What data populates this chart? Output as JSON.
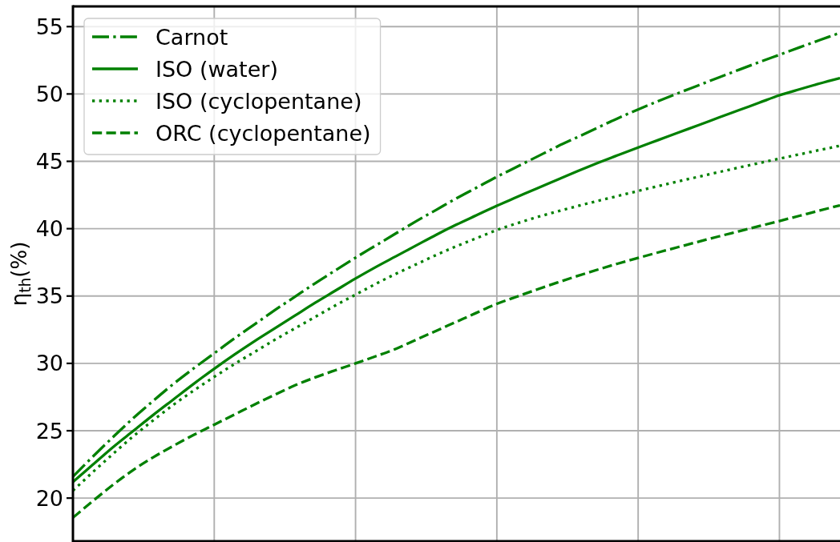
{
  "chart_data": {
    "type": "line",
    "ylabel": "η$_{th}$(%)",
    "categories": [
      null,
      null,
      null,
      null,
      null,
      null,
      null,
      null,
      null,
      null,
      null,
      null,
      null,
      null,
      null,
      null,
      null,
      null,
      null,
      null,
      null,
      null,
      null,
      null,
      null,
      null,
      null,
      null,
      null,
      null,
      null,
      null,
      null,
      null,
      null,
      null,
      null,
      null,
      null
    ],
    "ylim": [
      16.8,
      56.5
    ],
    "yticks": [
      20,
      25,
      30,
      35,
      40,
      45,
      50,
      55
    ],
    "grid": true,
    "legend": "top left",
    "series": [
      {
        "name": "Carnot",
        "color": "#008000",
        "line_style": "dashdot",
        "values": [
          21.6,
          23.1,
          24.55,
          25.95,
          27.25,
          28.5,
          29.65,
          30.75,
          31.85,
          32.9,
          33.95,
          34.95,
          35.95,
          36.9,
          37.85,
          38.75,
          39.65,
          40.55,
          41.4,
          42.25,
          43.05,
          43.85,
          44.6,
          45.35,
          46.1,
          46.8,
          47.5,
          48.2,
          48.85,
          49.47,
          50.07,
          50.65,
          51.23,
          51.8,
          52.36,
          52.91,
          53.46,
          54.0,
          54.54
        ]
      },
      {
        "name": "ISO (water)",
        "color": "#008000",
        "line_style": "solid",
        "values": [
          21.2,
          22.5,
          23.8,
          25.0,
          26.2,
          27.35,
          28.5,
          29.6,
          30.65,
          31.65,
          32.6,
          33.55,
          34.5,
          35.4,
          36.3,
          37.15,
          37.95,
          38.75,
          39.55,
          40.3,
          41.0,
          41.7,
          42.35,
          43.0,
          43.63,
          44.27,
          44.88,
          45.46,
          46.03,
          46.58,
          47.14,
          47.69,
          48.25,
          48.8,
          49.35,
          49.9,
          50.35,
          50.78,
          51.18
        ]
      },
      {
        "name": "ISO (cyclopentane)",
        "color": "#008000",
        "line_style": "dotted",
        "values": [
          20.55,
          21.95,
          23.3,
          24.6,
          25.8,
          26.95,
          28.0,
          29.0,
          29.95,
          30.85,
          31.75,
          32.6,
          33.45,
          34.3,
          35.1,
          35.9,
          36.65,
          37.35,
          38.05,
          38.7,
          39.3,
          39.9,
          40.4,
          40.86,
          41.28,
          41.68,
          42.06,
          42.43,
          42.8,
          43.16,
          43.51,
          43.86,
          44.2,
          44.54,
          44.87,
          45.2,
          45.52,
          45.84,
          46.16
        ]
      },
      {
        "name": "ORC (cyclopentane)",
        "color": "#008000",
        "line_style": "dashed",
        "values": [
          18.55,
          19.8,
          21.0,
          22.1,
          23.05,
          23.9,
          24.7,
          25.45,
          26.2,
          26.95,
          27.67,
          28.37,
          28.96,
          29.49,
          30.0,
          30.53,
          31.08,
          31.75,
          32.42,
          33.09,
          33.76,
          34.42,
          34.96,
          35.49,
          36.0,
          36.49,
          36.96,
          37.41,
          37.83,
          38.24,
          38.64,
          39.04,
          39.43,
          39.81,
          40.19,
          40.57,
          40.96,
          41.35,
          41.73
        ]
      }
    ]
  }
}
